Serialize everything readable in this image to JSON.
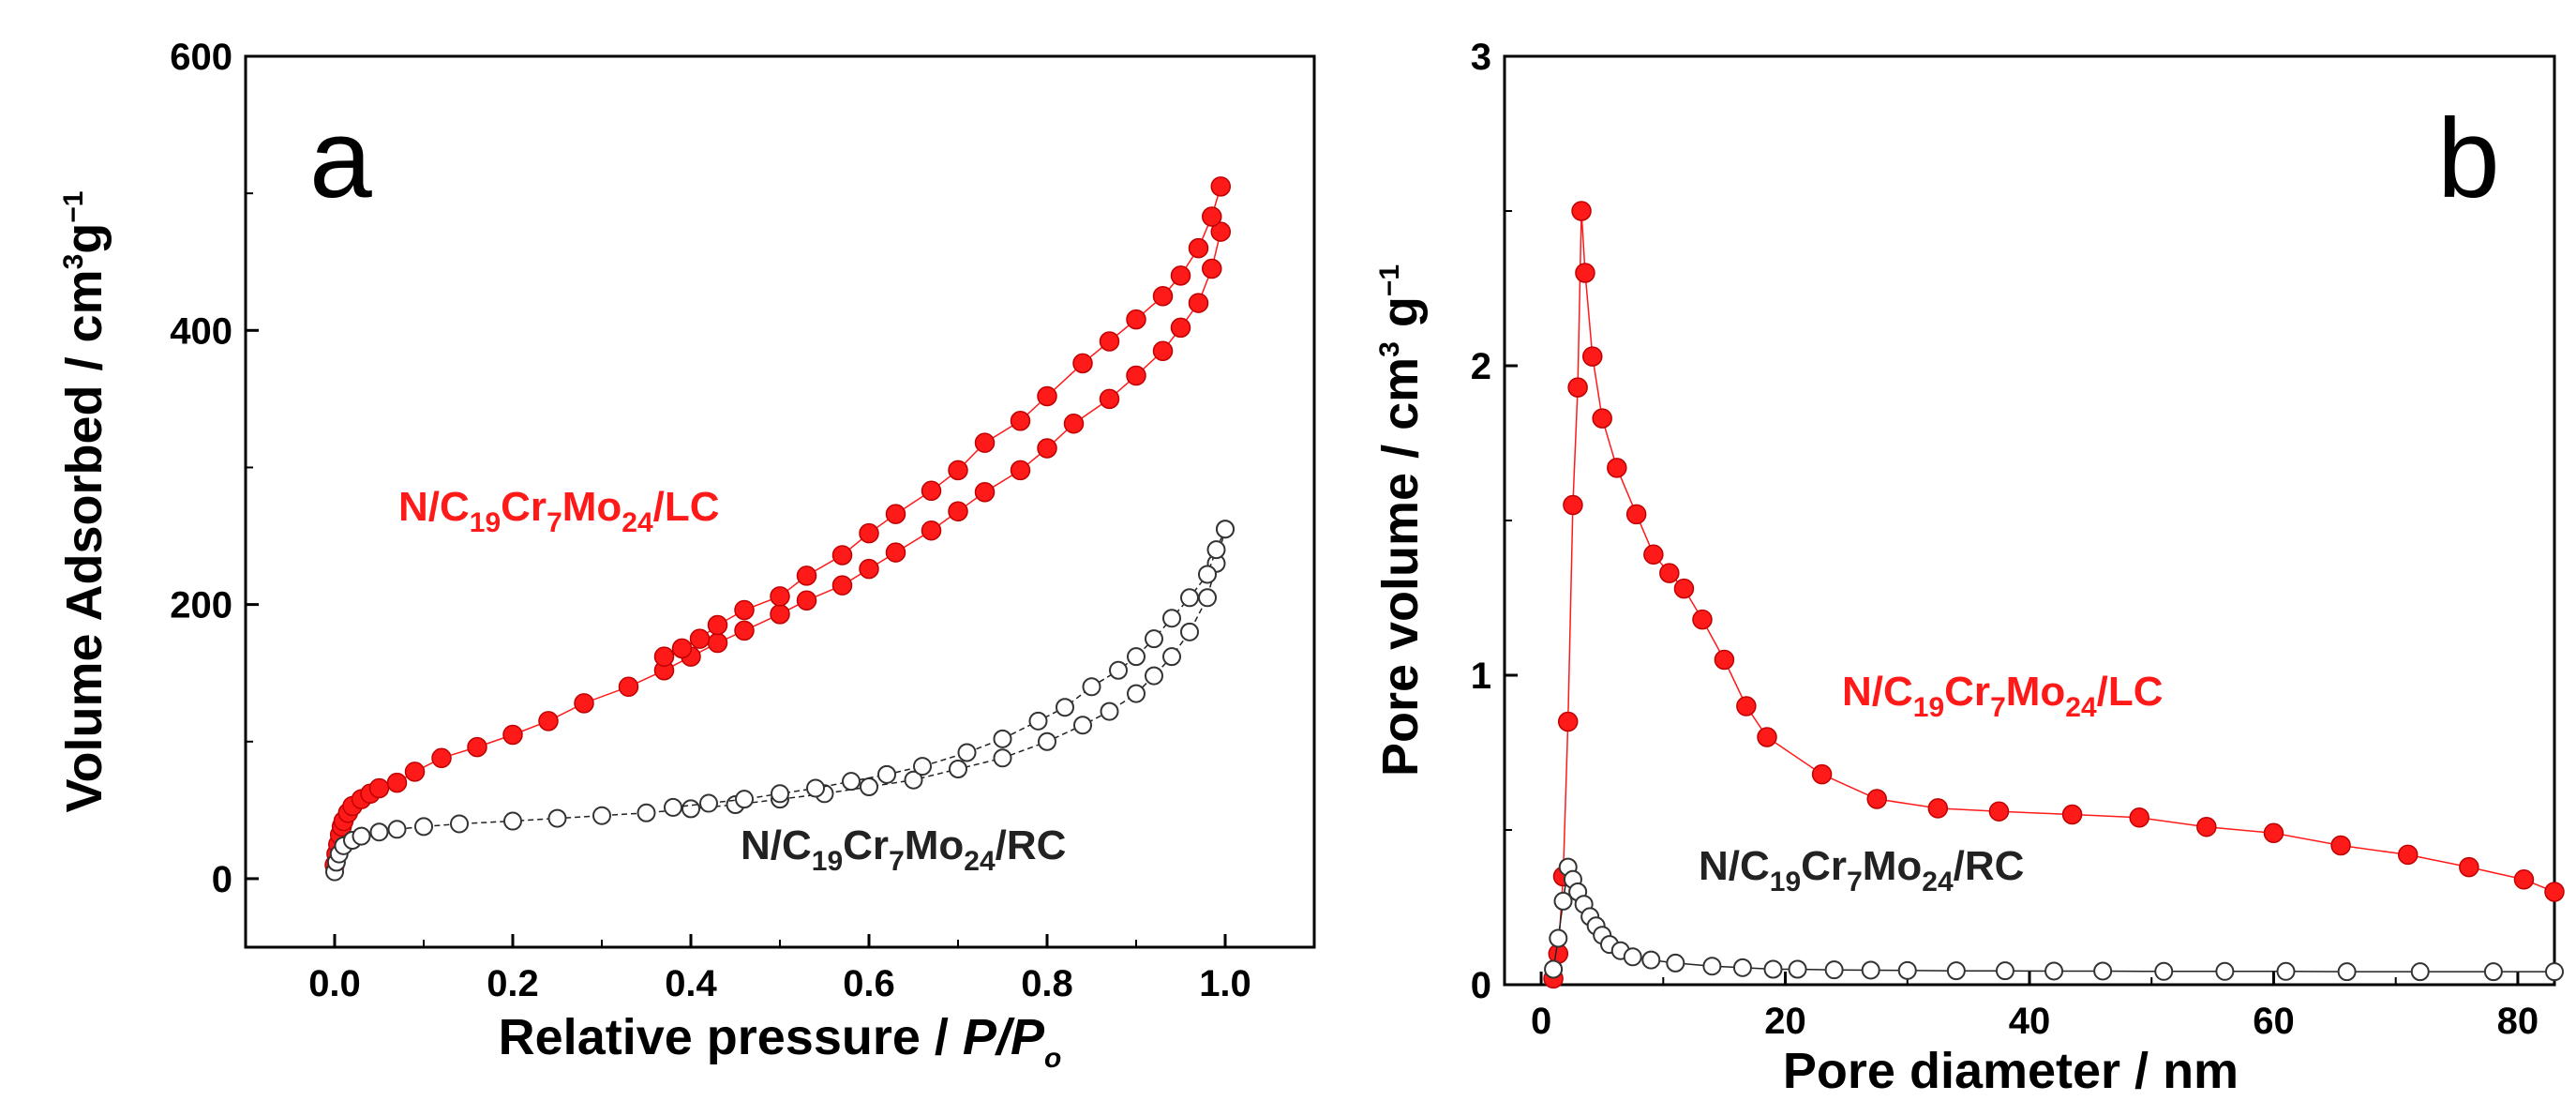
{
  "colors": {
    "red": "#ff1a1a",
    "black": "#222222"
  },
  "chart_data": [
    {
      "type": "scatter",
      "panel_label": "a",
      "xlabel_main": "Relative pressure / ",
      "xlabel_P": "P",
      "xlabel_slash": "/",
      "xlabel_Po": "P",
      "xlabel_Po_sub": "o",
      "ylabel_main": "Volume Adsorbed / cm",
      "ylabel_sup3": "3",
      "ylabel_g": "g",
      "ylabel_sup_m1": "−1",
      "xlim": [
        -0.1,
        1.1
      ],
      "ylim": [
        -50,
        600
      ],
      "xticks": [
        0.0,
        0.2,
        0.4,
        0.6,
        0.8,
        1.0
      ],
      "xtick_labels": [
        "0.0",
        "0.2",
        "0.4",
        "0.6",
        "0.8",
        "1.0"
      ],
      "yticks": [
        0,
        200,
        400,
        600
      ],
      "ytick_labels": [
        "0",
        "200",
        "400",
        "600"
      ],
      "series": [
        {
          "name_parts": [
            "N/C",
            "19",
            "Cr",
            "7",
            "Mo",
            "24",
            "/LC"
          ],
          "style": "filled-red",
          "adsorption": {
            "x": [
              0.0,
              0.002,
              0.004,
              0.006,
              0.008,
              0.01,
              0.015,
              0.02,
              0.03,
              0.04,
              0.05,
              0.07,
              0.09,
              0.12,
              0.16,
              0.2,
              0.24,
              0.28,
              0.33,
              0.37,
              0.4,
              0.43,
              0.46,
              0.5,
              0.53,
              0.57,
              0.6,
              0.63,
              0.67,
              0.7,
              0.73,
              0.77,
              0.8,
              0.83,
              0.87,
              0.9,
              0.93,
              0.95,
              0.97,
              0.985,
              0.995
            ],
            "y": [
              10,
              18,
              25,
              32,
              38,
              42,
              48,
              53,
              58,
              62,
              66,
              70,
              78,
              88,
              96,
              105,
              115,
              128,
              140,
              152,
              162,
              172,
              181,
              193,
              203,
              214,
              226,
              238,
              254,
              268,
              282,
              298,
              314,
              332,
              350,
              367,
              385,
              402,
              420,
              445,
              472
            ]
          },
          "desorption": {
            "x": [
              0.995,
              0.985,
              0.97,
              0.95,
              0.93,
              0.9,
              0.87,
              0.84,
              0.8,
              0.77,
              0.73,
              0.7,
              0.67,
              0.63,
              0.6,
              0.57,
              0.53,
              0.5,
              0.46,
              0.43,
              0.41,
              0.39,
              0.37
            ],
            "y": [
              505,
              483,
              460,
              440,
              425,
              408,
              392,
              376,
              352,
              334,
              318,
              298,
              283,
              266,
              252,
              236,
              221,
              206,
              196,
              185,
              175,
              168,
              162
            ]
          }
        },
        {
          "name_parts": [
            "N/C",
            "19",
            "Cr",
            "7",
            "Mo",
            "24",
            "/RC"
          ],
          "style": "open-black",
          "adsorption": {
            "x": [
              0.0,
              0.002,
              0.005,
              0.01,
              0.02,
              0.03,
              0.05,
              0.07,
              0.1,
              0.14,
              0.2,
              0.25,
              0.3,
              0.35,
              0.4,
              0.45,
              0.5,
              0.55,
              0.6,
              0.65,
              0.7,
              0.75,
              0.8,
              0.84,
              0.87,
              0.9,
              0.92,
              0.94,
              0.96,
              0.98,
              0.99,
              1.0
            ],
            "y": [
              5,
              12,
              18,
              24,
              28,
              31,
              34,
              36,
              38,
              40,
              42,
              44,
              46,
              48,
              51,
              54,
              58,
              62,
              67,
              72,
              80,
              88,
              100,
              112,
              122,
              135,
              148,
              162,
              180,
              205,
              230,
              255
            ]
          },
          "desorption": {
            "x": [
              1.0,
              0.99,
              0.98,
              0.96,
              0.94,
              0.92,
              0.9,
              0.88,
              0.85,
              0.82,
              0.79,
              0.75,
              0.71,
              0.66,
              0.62,
              0.58,
              0.54,
              0.5,
              0.46,
              0.42,
              0.38
            ],
            "y": [
              255,
              240,
              222,
              205,
              190,
              175,
              162,
              152,
              140,
              125,
              115,
              102,
              92,
              82,
              76,
              71,
              66,
              62,
              58,
              55,
              52
            ]
          }
        }
      ]
    },
    {
      "type": "line",
      "panel_label": "b",
      "xlabel": "Pore diameter / nm",
      "ylabel_main": "Pore volume / cm",
      "ylabel_sup3": "3",
      "ylabel_g": " g",
      "ylabel_sup_m1": "−1",
      "xlim": [
        -3,
        83
      ],
      "ylim": [
        0,
        3
      ],
      "xticks": [
        0,
        20,
        40,
        60,
        80
      ],
      "xtick_labels": [
        "0",
        "20",
        "40",
        "60",
        "80"
      ],
      "yticks": [
        0,
        1,
        2,
        3
      ],
      "ytick_labels": [
        "0",
        "1",
        "2",
        "3"
      ],
      "series": [
        {
          "name_parts": [
            "N/C",
            "19",
            "Cr",
            "7",
            "Mo",
            "24",
            "/LC"
          ],
          "style": "filled-red",
          "x": [
            1.0,
            1.4,
            1.8,
            2.2,
            2.6,
            3.0,
            3.3,
            3.6,
            4.2,
            5.0,
            6.2,
            7.8,
            9.2,
            10.5,
            11.7,
            13.2,
            15.0,
            16.8,
            18.5,
            23.0,
            27.5,
            32.5,
            37.5,
            43.5,
            49.0,
            54.5,
            60.0,
            65.5,
            71.0,
            76.0,
            80.5,
            83.0
          ],
          "y": [
            0.02,
            0.1,
            0.35,
            0.85,
            1.55,
            1.93,
            2.5,
            2.3,
            2.03,
            1.83,
            1.67,
            1.52,
            1.39,
            1.33,
            1.28,
            1.18,
            1.05,
            0.9,
            0.8,
            0.68,
            0.6,
            0.57,
            0.56,
            0.55,
            0.54,
            0.51,
            0.49,
            0.45,
            0.42,
            0.38,
            0.34,
            0.3
          ]
        },
        {
          "name_parts": [
            "N/C",
            "19",
            "Cr",
            "7",
            "Mo",
            "24",
            "/RC"
          ],
          "style": "open-black",
          "x": [
            1.0,
            1.4,
            1.8,
            2.2,
            2.6,
            3.0,
            3.5,
            4.0,
            4.5,
            5.0,
            5.6,
            6.5,
            7.5,
            9.0,
            11.0,
            14.0,
            16.5,
            19.0,
            21.0,
            24.0,
            27.0,
            30.0,
            34.0,
            38.0,
            42.0,
            46.0,
            51.0,
            56.0,
            61.0,
            66.0,
            72.0,
            78.0,
            83.0
          ],
          "y": [
            0.05,
            0.15,
            0.27,
            0.38,
            0.34,
            0.3,
            0.26,
            0.22,
            0.19,
            0.16,
            0.13,
            0.11,
            0.09,
            0.08,
            0.07,
            0.06,
            0.055,
            0.05,
            0.05,
            0.048,
            0.047,
            0.046,
            0.045,
            0.045,
            0.044,
            0.044,
            0.043,
            0.043,
            0.043,
            0.042,
            0.042,
            0.042,
            0.042
          ]
        }
      ]
    }
  ]
}
